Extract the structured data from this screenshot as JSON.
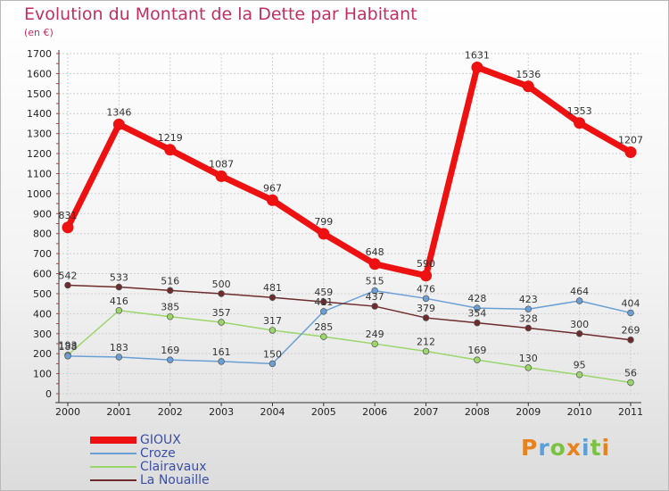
{
  "title": "Evolution du Montant de la Dette par Habitant",
  "unit": "(en €)",
  "brand": "Proxiti",
  "chart_data": {
    "type": "line",
    "x": [
      "2000",
      "2001",
      "2002",
      "2003",
      "2004",
      "2005",
      "2006",
      "2007",
      "2008",
      "2009",
      "2010",
      "2011"
    ],
    "ylim": [
      0,
      1700
    ],
    "yticks": [
      0,
      100,
      200,
      300,
      400,
      500,
      600,
      700,
      800,
      900,
      1000,
      1100,
      1200,
      1300,
      1400,
      1500,
      1600,
      1700
    ],
    "grid": true,
    "legend": "bottom-left",
    "series": [
      {
        "name": "GIOUX",
        "color": "#ee1111",
        "values": [
          831,
          1346,
          1219,
          1087,
          967,
          799,
          648,
          590,
          1631,
          1536,
          1353,
          1207
        ]
      },
      {
        "name": "Croze",
        "color": "#6a9fd6",
        "values": [
          188,
          183,
          169,
          161,
          150,
          411,
          515,
          476,
          428,
          423,
          464,
          404
        ]
      },
      {
        "name": "Clairavaux",
        "color": "#9ad66a",
        "values": [
          193,
          416,
          385,
          357,
          317,
          285,
          249,
          212,
          169,
          130,
          95,
          56
        ]
      },
      {
        "name": "La Nouaille",
        "color": "#6e2b2b",
        "values": [
          542,
          533,
          516,
          500,
          481,
          459,
          437,
          379,
          354,
          328,
          300,
          269
        ]
      }
    ]
  }
}
